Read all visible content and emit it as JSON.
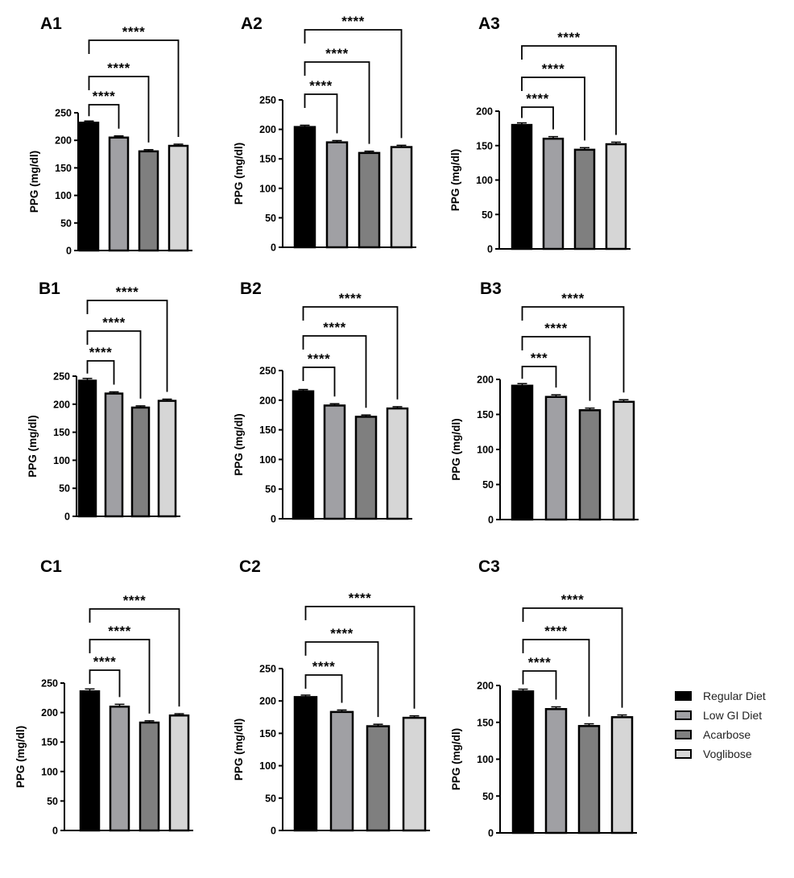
{
  "legend": {
    "items": [
      {
        "label": "Regular Diet",
        "color": "#000000"
      },
      {
        "label": "Low GI Diet",
        "color": "#a0a0a4"
      },
      {
        "label": "Acarbose",
        "color": "#7f7f7f"
      },
      {
        "label": "Voglibose",
        "color": "#d6d6d6"
      }
    ]
  },
  "chart_data": [
    {
      "panel": "A1",
      "type": "bar",
      "ylabel": "PPG (mg/dl)",
      "ylim": [
        0,
        250
      ],
      "yticks": [
        0,
        50,
        100,
        150,
        200,
        250
      ],
      "categories": [
        "Regular Diet",
        "Low GI Diet",
        "Acarbose",
        "Voglibose"
      ],
      "values": [
        232,
        205,
        180,
        190
      ],
      "errors": [
        3,
        3,
        3,
        3
      ],
      "comparisons": [
        {
          "from": 0,
          "to": 1,
          "label": "****"
        },
        {
          "from": 0,
          "to": 2,
          "label": "****"
        },
        {
          "from": 0,
          "to": 3,
          "label": "****"
        }
      ]
    },
    {
      "panel": "A2",
      "type": "bar",
      "ylabel": "PPG (mg/dl)",
      "ylim": [
        0,
        250
      ],
      "yticks": [
        0,
        50,
        100,
        150,
        200,
        250
      ],
      "categories": [
        "Regular Diet",
        "Low GI Diet",
        "Acarbose",
        "Voglibose"
      ],
      "values": [
        204,
        178,
        160,
        170
      ],
      "errors": [
        3,
        3,
        3,
        3
      ],
      "comparisons": [
        {
          "from": 0,
          "to": 1,
          "label": "****"
        },
        {
          "from": 0,
          "to": 2,
          "label": "****"
        },
        {
          "from": 0,
          "to": 3,
          "label": "****"
        }
      ]
    },
    {
      "panel": "A3",
      "type": "bar",
      "ylabel": "PPG (mg/dl)",
      "ylim": [
        0,
        200
      ],
      "yticks": [
        0,
        50,
        100,
        150,
        200
      ],
      "categories": [
        "Regular Diet",
        "Low GI Diet",
        "Acarbose",
        "Voglibose"
      ],
      "values": [
        180,
        160,
        144,
        152
      ],
      "errors": [
        3,
        3,
        3,
        3
      ],
      "comparisons": [
        {
          "from": 0,
          "to": 1,
          "label": "****"
        },
        {
          "from": 0,
          "to": 2,
          "label": "****"
        },
        {
          "from": 0,
          "to": 3,
          "label": "****"
        }
      ]
    },
    {
      "panel": "B1",
      "type": "bar",
      "ylabel": "PPG (mg/dl)",
      "ylim": [
        0,
        250
      ],
      "yticks": [
        0,
        50,
        100,
        150,
        200,
        250
      ],
      "categories": [
        "Regular Diet",
        "Low GI Diet",
        "Acarbose",
        "Voglibose"
      ],
      "values": [
        242,
        219,
        194,
        206
      ],
      "errors": [
        4,
        3,
        3,
        3
      ],
      "comparisons": [
        {
          "from": 0,
          "to": 1,
          "label": "****"
        },
        {
          "from": 0,
          "to": 2,
          "label": "****"
        },
        {
          "from": 0,
          "to": 3,
          "label": "****"
        }
      ]
    },
    {
      "panel": "B2",
      "type": "bar",
      "ylabel": "PPG (mg/dl)",
      "ylim": [
        0,
        250
      ],
      "yticks": [
        0,
        50,
        100,
        150,
        200,
        250
      ],
      "categories": [
        "Regular Diet",
        "Low GI Diet",
        "Acarbose",
        "Voglibose"
      ],
      "values": [
        215,
        191,
        172,
        186
      ],
      "errors": [
        3,
        3,
        3,
        3
      ],
      "comparisons": [
        {
          "from": 0,
          "to": 1,
          "label": "****"
        },
        {
          "from": 0,
          "to": 2,
          "label": "****"
        },
        {
          "from": 0,
          "to": 3,
          "label": "****"
        }
      ]
    },
    {
      "panel": "B3",
      "type": "bar",
      "ylabel": "PPG (mg/dl)",
      "ylim": [
        0,
        200
      ],
      "yticks": [
        0,
        50,
        100,
        150,
        200
      ],
      "categories": [
        "Regular Diet",
        "Low GI Diet",
        "Acarbose",
        "Voglibose"
      ],
      "values": [
        191,
        175,
        156,
        168
      ],
      "errors": [
        3,
        3,
        3,
        3
      ],
      "comparisons": [
        {
          "from": 0,
          "to": 1,
          "label": "***"
        },
        {
          "from": 0,
          "to": 2,
          "label": "****"
        },
        {
          "from": 0,
          "to": 3,
          "label": "****"
        }
      ]
    },
    {
      "panel": "C1",
      "type": "bar",
      "ylabel": "PPG (mg/dl)",
      "ylim": [
        0,
        250
      ],
      "yticks": [
        0,
        50,
        100,
        150,
        200,
        250
      ],
      "categories": [
        "Regular Diet",
        "Low GI Diet",
        "Acarbose",
        "Voglibose"
      ],
      "values": [
        236,
        210,
        183,
        195
      ],
      "errors": [
        4,
        4,
        3,
        3
      ],
      "comparisons": [
        {
          "from": 0,
          "to": 1,
          "label": "****"
        },
        {
          "from": 0,
          "to": 2,
          "label": "****"
        },
        {
          "from": 0,
          "to": 3,
          "label": "****"
        }
      ]
    },
    {
      "panel": "C2",
      "type": "bar",
      "ylabel": "PPG (mg/dl)",
      "ylim": [
        0,
        250
      ],
      "yticks": [
        0,
        50,
        100,
        150,
        200,
        250
      ],
      "categories": [
        "Regular Diet",
        "Low GI Diet",
        "Acarbose",
        "Voglibose"
      ],
      "values": [
        206,
        183,
        161,
        174
      ],
      "errors": [
        3,
        3,
        3,
        3
      ],
      "comparisons": [
        {
          "from": 0,
          "to": 1,
          "label": "****"
        },
        {
          "from": 0,
          "to": 2,
          "label": "****"
        },
        {
          "from": 0,
          "to": 3,
          "label": "****"
        }
      ]
    },
    {
      "panel": "C3",
      "type": "bar",
      "ylabel": "PPG (mg/dl)",
      "ylim": [
        0,
        200
      ],
      "yticks": [
        0,
        50,
        100,
        150,
        200
      ],
      "categories": [
        "Regular Diet",
        "Low GI Diet",
        "Acarbose",
        "Voglibose"
      ],
      "values": [
        192,
        168,
        145,
        157
      ],
      "errors": [
        3,
        3,
        3,
        3
      ],
      "comparisons": [
        {
          "from": 0,
          "to": 1,
          "label": "****"
        },
        {
          "from": 0,
          "to": 2,
          "label": "****"
        },
        {
          "from": 0,
          "to": 3,
          "label": "****"
        }
      ]
    }
  ]
}
